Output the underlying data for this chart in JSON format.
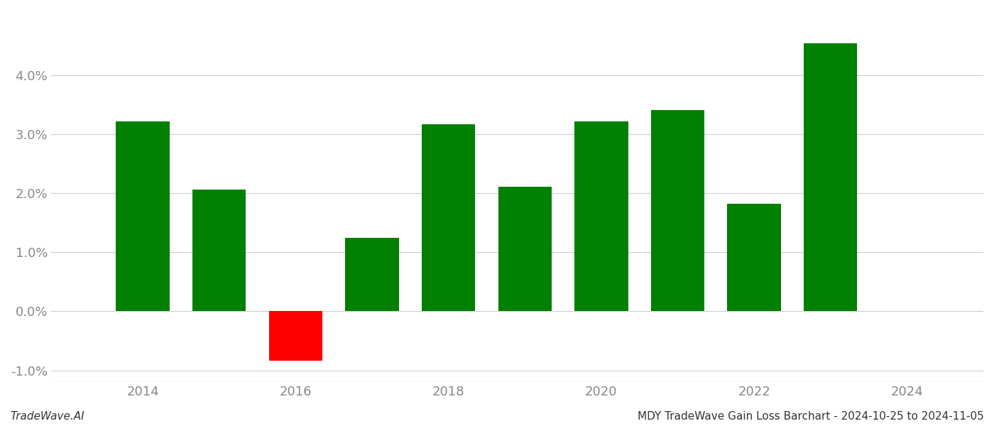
{
  "years": [
    2014,
    2015,
    2016,
    2017,
    2018,
    2019,
    2020,
    2021,
    2022,
    2023
  ],
  "values": [
    3.22,
    2.06,
    -0.84,
    1.25,
    3.17,
    2.11,
    3.22,
    3.42,
    1.83,
    4.55
  ],
  "colors": [
    "#008000",
    "#008000",
    "#ff0000",
    "#008000",
    "#008000",
    "#008000",
    "#008000",
    "#008000",
    "#008000",
    "#008000"
  ],
  "ylim": [
    -1.2,
    5.1
  ],
  "yticks": [
    -1.0,
    0.0,
    1.0,
    2.0,
    3.0,
    4.0
  ],
  "xticks": [
    2014,
    2016,
    2018,
    2020,
    2022,
    2024
  ],
  "xlim": [
    2012.8,
    2025.0
  ],
  "bar_width": 0.7,
  "background_color": "#ffffff",
  "grid_color": "#cccccc",
  "axis_label_color": "#888888",
  "footer_left": "TradeWave.AI",
  "footer_right": "MDY TradeWave Gain Loss Barchart - 2024-10-25 to 2024-11-05",
  "footer_fontsize": 11,
  "tick_fontsize": 13
}
